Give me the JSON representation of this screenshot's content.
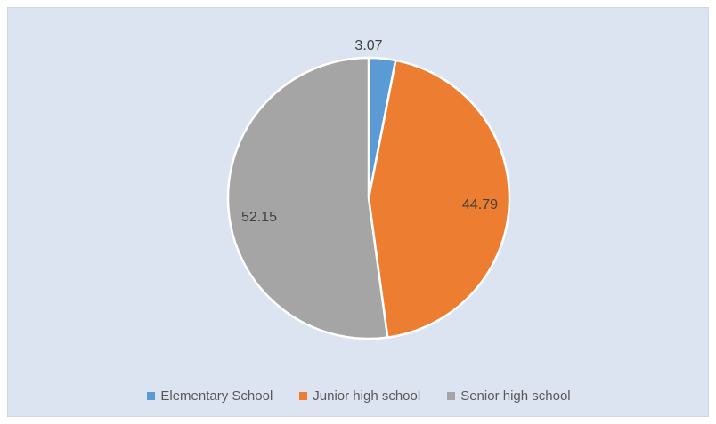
{
  "chart_data": {
    "type": "pie",
    "categories": [
      "Elementary School",
      "Junior high school",
      "Senior high school"
    ],
    "values": [
      3.07,
      44.79,
      52.15
    ],
    "colors": [
      "#5b9bd5",
      "#ed7d31",
      "#a5a5a5"
    ],
    "data_labels": [
      "3.07",
      "44.79",
      "52.15"
    ],
    "legend_position": "bottom",
    "title": ""
  }
}
